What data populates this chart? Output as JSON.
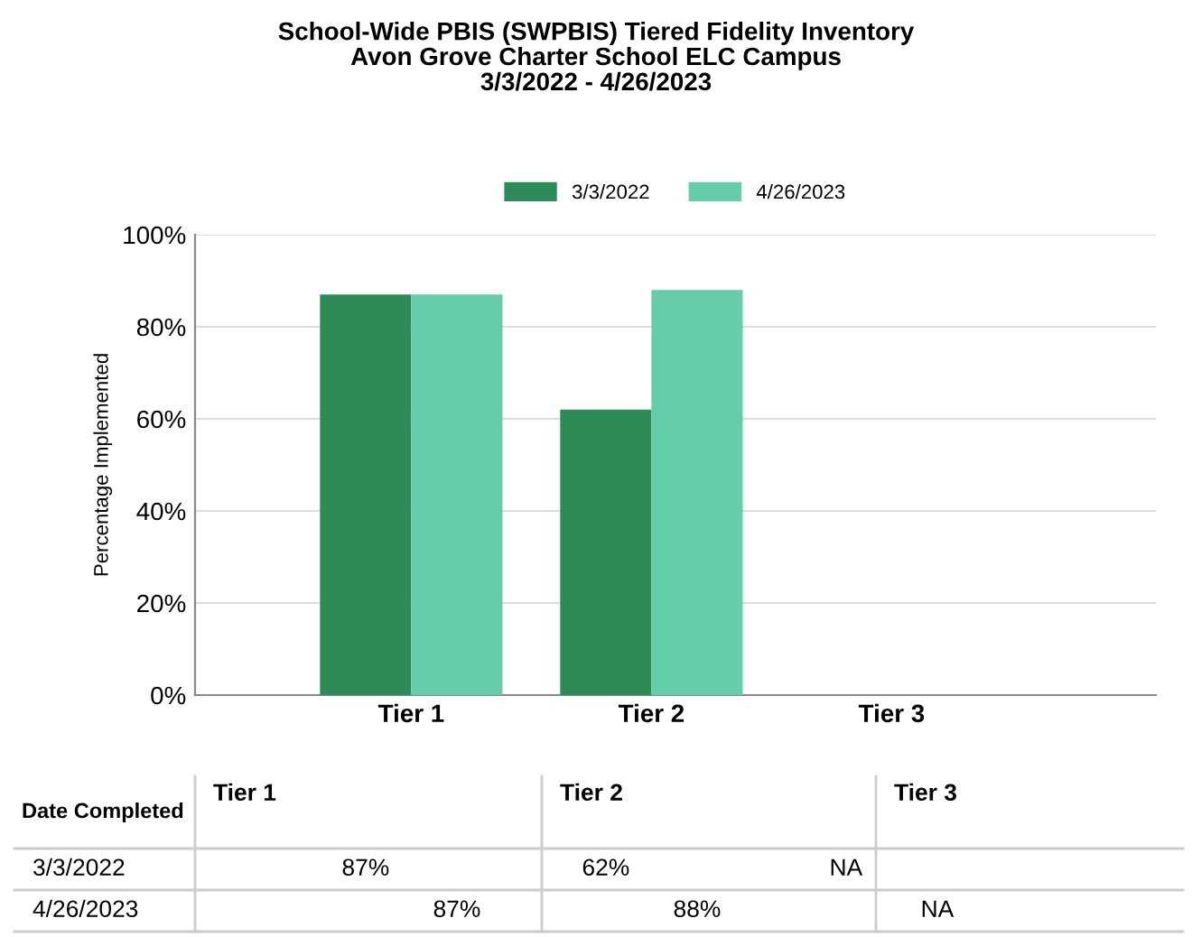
{
  "chart_data": {
    "type": "bar",
    "title": "School-Wide PBIS (SWPBIS) Tiered Fidelity Inventory\nAvon Grove Charter School ELC Campus\n3/3/2022 - 4/26/2023",
    "ylabel": "Percentage Implemented",
    "categories": [
      "Tier 1",
      "Tier 2",
      "Tier 3"
    ],
    "series": [
      {
        "name": "3/3/2022",
        "color": "#2e8b57",
        "values": [
          87,
          62,
          null
        ],
        "value_labels": [
          "87%",
          "62%",
          "NA"
        ]
      },
      {
        "name": "4/26/2023",
        "color": "#66cdaa",
        "values": [
          87,
          88,
          null
        ],
        "value_labels": [
          "87%",
          "88%",
          "NA"
        ]
      }
    ],
    "ylim": [
      0,
      100
    ],
    "yticks": [
      {
        "value": 0,
        "label": "0%"
      },
      {
        "value": 20,
        "label": "20%"
      },
      {
        "value": 40,
        "label": "40%"
      },
      {
        "value": 60,
        "label": "60%"
      },
      {
        "value": 80,
        "label": "80%"
      },
      {
        "value": 100,
        "label": "100%"
      }
    ],
    "grid": "y",
    "legend": "top",
    "annotations": [
      "Date Completed"
    ]
  }
}
